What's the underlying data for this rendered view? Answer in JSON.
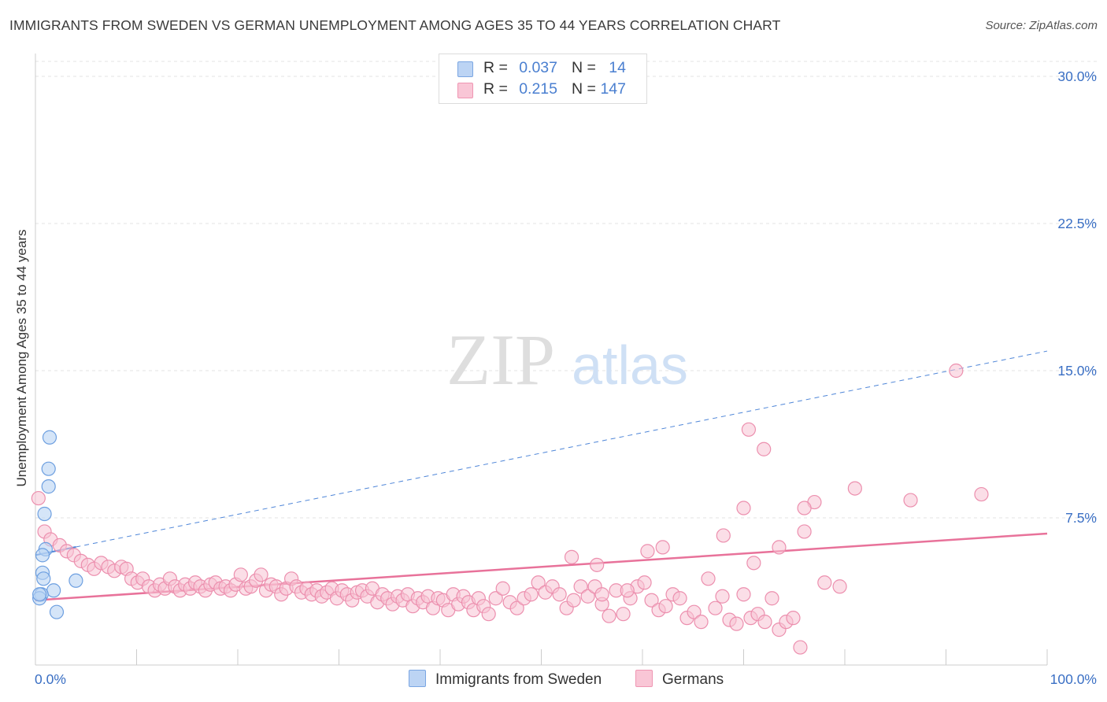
{
  "title": "IMMIGRANTS FROM SWEDEN VS GERMAN UNEMPLOYMENT AMONG AGES 35 TO 44 YEARS CORRELATION CHART",
  "source": "Source: ZipAtlas.com",
  "watermark": {
    "zip": "ZIP",
    "atlas": "atlas"
  },
  "legend": {
    "rows": [
      {
        "r_label": "R =",
        "r_value": "0.037",
        "n_label": "N =",
        "n_value": "14",
        "color": "#a9c8f0"
      },
      {
        "r_label": "R =",
        "r_value": "0.215",
        "n_label": "N =",
        "n_value": "147",
        "color": "#f6b8cc"
      }
    ]
  },
  "bottom_legend": {
    "series_a": "Immigrants from Sweden",
    "series_b": "Germans"
  },
  "colors": {
    "blue_fill": "#b9d3f3",
    "blue_stroke": "#6d9fe0",
    "blue_line": "#4f86d8",
    "pink_fill": "#f8c3d4",
    "pink_stroke": "#ec8fae",
    "pink_line": "#e8729a",
    "axis_text": "#3a6fc4",
    "grid": "#e3e3e3"
  },
  "chart_data": {
    "type": "scatter",
    "title": "IMMIGRANTS FROM SWEDEN VS GERMAN UNEMPLOYMENT AMONG AGES 35 TO 44 YEARS CORRELATION CHART",
    "xlabel": "",
    "ylabel": "Unemployment Among Ages 35 to 44 years",
    "xlim": [
      0,
      100
    ],
    "ylim": [
      0,
      30.0
    ],
    "x_tick_labels": {
      "min": "0.0%",
      "max": "100.0%"
    },
    "y_ticks": [
      7.5,
      15.0,
      22.5,
      30.0
    ],
    "y_tick_labels": [
      "7.5%",
      "15.0%",
      "22.5%",
      "30.0%"
    ],
    "legend_position": "top-center",
    "series": [
      {
        "name": "Immigrants from Sweden",
        "r": 0.037,
        "n": 14,
        "trend": {
          "x": [
            0,
            100
          ],
          "y": [
            5.6,
            16.0
          ],
          "dashed_beyond_x": 4
        },
        "points": [
          [
            1.4,
            11.6
          ],
          [
            1.3,
            10.0
          ],
          [
            1.3,
            9.1
          ],
          [
            0.9,
            7.7
          ],
          [
            1.0,
            5.9
          ],
          [
            0.7,
            5.6
          ],
          [
            0.7,
            4.7
          ],
          [
            0.8,
            4.4
          ],
          [
            4.0,
            4.3
          ],
          [
            1.8,
            3.8
          ],
          [
            0.6,
            3.6
          ],
          [
            0.4,
            3.4
          ],
          [
            0.4,
            3.6
          ],
          [
            2.1,
            2.7
          ]
        ]
      },
      {
        "name": "Germans",
        "r": 0.215,
        "n": 147,
        "trend": {
          "x": [
            0,
            100
          ],
          "y": [
            3.3,
            6.7
          ]
        },
        "points": [
          [
            0.3,
            8.5
          ],
          [
            0.9,
            6.8
          ],
          [
            1.5,
            6.4
          ],
          [
            2.4,
            6.1
          ],
          [
            3.1,
            5.8
          ],
          [
            3.8,
            5.6
          ],
          [
            4.5,
            5.3
          ],
          [
            5.2,
            5.1
          ],
          [
            5.8,
            4.9
          ],
          [
            6.5,
            5.2
          ],
          [
            7.2,
            5.0
          ],
          [
            7.8,
            4.8
          ],
          [
            8.5,
            5.0
          ],
          [
            9.0,
            4.9
          ],
          [
            9.5,
            4.4
          ],
          [
            10.1,
            4.2
          ],
          [
            10.6,
            4.4
          ],
          [
            11.2,
            4.0
          ],
          [
            11.8,
            3.8
          ],
          [
            12.3,
            4.1
          ],
          [
            12.8,
            3.9
          ],
          [
            13.3,
            4.4
          ],
          [
            13.8,
            4.0
          ],
          [
            14.3,
            3.8
          ],
          [
            14.8,
            4.1
          ],
          [
            15.3,
            3.9
          ],
          [
            15.8,
            4.2
          ],
          [
            16.3,
            4.0
          ],
          [
            16.8,
            3.8
          ],
          [
            17.3,
            4.1
          ],
          [
            17.8,
            4.2
          ],
          [
            18.3,
            3.9
          ],
          [
            18.8,
            4.0
          ],
          [
            19.3,
            3.8
          ],
          [
            19.8,
            4.1
          ],
          [
            20.3,
            4.6
          ],
          [
            20.8,
            3.9
          ],
          [
            21.3,
            4.0
          ],
          [
            21.8,
            4.3
          ],
          [
            22.3,
            4.6
          ],
          [
            22.8,
            3.8
          ],
          [
            23.3,
            4.1
          ],
          [
            23.8,
            4.0
          ],
          [
            24.3,
            3.6
          ],
          [
            24.8,
            3.9
          ],
          [
            25.3,
            4.4
          ],
          [
            25.8,
            4.0
          ],
          [
            26.3,
            3.7
          ],
          [
            26.8,
            3.9
          ],
          [
            27.3,
            3.6
          ],
          [
            27.8,
            3.8
          ],
          [
            28.3,
            3.5
          ],
          [
            28.8,
            3.7
          ],
          [
            29.3,
            3.9
          ],
          [
            29.8,
            3.4
          ],
          [
            30.3,
            3.8
          ],
          [
            30.8,
            3.6
          ],
          [
            31.3,
            3.3
          ],
          [
            31.8,
            3.7
          ],
          [
            32.3,
            3.8
          ],
          [
            32.8,
            3.5
          ],
          [
            33.3,
            3.9
          ],
          [
            33.8,
            3.2
          ],
          [
            34.3,
            3.6
          ],
          [
            34.8,
            3.4
          ],
          [
            35.3,
            3.1
          ],
          [
            35.8,
            3.5
          ],
          [
            36.3,
            3.3
          ],
          [
            36.8,
            3.6
          ],
          [
            37.3,
            3.0
          ],
          [
            37.8,
            3.4
          ],
          [
            38.3,
            3.2
          ],
          [
            38.8,
            3.5
          ],
          [
            39.3,
            2.9
          ],
          [
            39.8,
            3.4
          ],
          [
            40.3,
            3.3
          ],
          [
            40.8,
            2.8
          ],
          [
            41.3,
            3.6
          ],
          [
            41.8,
            3.1
          ],
          [
            42.3,
            3.5
          ],
          [
            42.8,
            3.2
          ],
          [
            43.3,
            2.8
          ],
          [
            43.8,
            3.4
          ],
          [
            44.3,
            3.0
          ],
          [
            44.8,
            2.6
          ],
          [
            45.5,
            3.4
          ],
          [
            46.2,
            3.9
          ],
          [
            46.9,
            3.2
          ],
          [
            47.6,
            2.9
          ],
          [
            48.3,
            3.4
          ],
          [
            49.0,
            3.6
          ],
          [
            49.7,
            4.2
          ],
          [
            50.4,
            3.7
          ],
          [
            51.1,
            4.0
          ],
          [
            51.8,
            3.6
          ],
          [
            52.5,
            2.9
          ],
          [
            53.2,
            3.3
          ],
          [
            53.9,
            4.0
          ],
          [
            54.6,
            3.5
          ],
          [
            55.3,
            4.0
          ],
          [
            56.0,
            3.1
          ],
          [
            56.7,
            2.5
          ],
          [
            57.4,
            3.8
          ],
          [
            58.1,
            2.6
          ],
          [
            58.8,
            3.4
          ],
          [
            59.5,
            4.0
          ],
          [
            60.2,
            4.2
          ],
          [
            60.9,
            3.3
          ],
          [
            61.6,
            2.8
          ],
          [
            62.3,
            3.0
          ],
          [
            63.0,
            3.6
          ],
          [
            63.7,
            3.4
          ],
          [
            64.4,
            2.4
          ],
          [
            65.1,
            2.7
          ],
          [
            65.8,
            2.2
          ],
          [
            66.5,
            4.4
          ],
          [
            67.2,
            2.9
          ],
          [
            67.9,
            3.5
          ],
          [
            68.6,
            2.3
          ],
          [
            69.3,
            2.1
          ],
          [
            70.0,
            3.6
          ],
          [
            70.7,
            2.4
          ],
          [
            71.4,
            2.6
          ],
          [
            72.1,
            2.2
          ],
          [
            72.8,
            3.4
          ],
          [
            73.5,
            1.8
          ],
          [
            74.2,
            2.2
          ],
          [
            74.9,
            2.4
          ],
          [
            75.6,
            0.9
          ],
          [
            56.0,
            3.6
          ],
          [
            53.0,
            5.5
          ],
          [
            55.5,
            5.1
          ],
          [
            58.5,
            3.8
          ],
          [
            62.0,
            6.0
          ],
          [
            60.5,
            5.8
          ],
          [
            71.0,
            5.2
          ],
          [
            68.0,
            6.6
          ],
          [
            73.5,
            6.0
          ],
          [
            70.0,
            8.0
          ],
          [
            76.0,
            6.8
          ],
          [
            72.0,
            11.0
          ],
          [
            70.5,
            12.0
          ],
          [
            91.0,
            15.0
          ],
          [
            93.5,
            8.7
          ],
          [
            78.0,
            4.2
          ],
          [
            79.5,
            4.0
          ],
          [
            81.0,
            9.0
          ],
          [
            86.5,
            8.4
          ],
          [
            77.0,
            8.3
          ],
          [
            76.0,
            8.0
          ]
        ]
      }
    ]
  }
}
